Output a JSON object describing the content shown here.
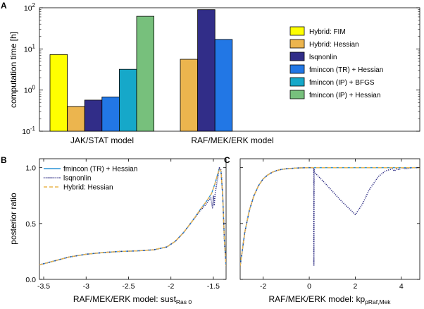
{
  "panels": {
    "a": "A",
    "b": "B",
    "c": "C"
  },
  "chart_data": [
    {
      "type": "bar",
      "panel": "A",
      "ylabel": "computation time [h]",
      "yscale": "log",
      "ylim": [
        0.1,
        100
      ],
      "yticks": [
        {
          "value": 0.1,
          "base": "10",
          "exp": "-1"
        },
        {
          "value": 1,
          "base": "10",
          "exp": "0"
        },
        {
          "value": 10,
          "base": "10",
          "exp": "1"
        },
        {
          "value": 100,
          "base": "10",
          "exp": "2"
        }
      ],
      "categories": [
        "JAK/STAT model",
        "RAF/MEK/ERK model"
      ],
      "legend_position": "right",
      "series": [
        {
          "name": "Hybrid: FIM",
          "color": "#ffff00",
          "values": [
            7.3,
            null
          ]
        },
        {
          "name": "Hybrid: Hessian",
          "color": "#ecb54e",
          "values": [
            0.4,
            5.6
          ]
        },
        {
          "name": "lsqnonlin",
          "color": "#312d88",
          "values": [
            0.57,
            90
          ]
        },
        {
          "name": "fmincon (TR) + Hessian",
          "color": "#2277e5",
          "values": [
            0.68,
            17
          ]
        },
        {
          "name": "fmincon (IP) + BFGS",
          "color": "#16a8c9",
          "values": [
            3.2,
            null
          ]
        },
        {
          "name": "fmincon (IP) + Hessian",
          "color": "#77c07c",
          "values": [
            62,
            null
          ]
        }
      ]
    },
    {
      "type": "line",
      "panel": "B",
      "xlabel_prefix": "RAF/MEK/ERK model: sust",
      "xlabel_sub": "Ras 0",
      "ylabel": "posterior ratio",
      "xlim": [
        -3.55,
        -1.35
      ],
      "ylim": [
        0,
        1.08
      ],
      "xticks": [
        "-3.5",
        "-3",
        "-2.5",
        "-2",
        "-1.5"
      ],
      "yticks": [
        "0.0",
        "0.5",
        "1.0"
      ],
      "legend_position": "top-left",
      "series": [
        {
          "name": "fmincon (TR) + Hessian",
          "color": "#2a93d6",
          "style": "solid",
          "x": [
            -3.55,
            -3.4,
            -3.2,
            -3.0,
            -2.8,
            -2.6,
            -2.4,
            -2.2,
            -2.05,
            -1.95,
            -1.85,
            -1.75,
            -1.65,
            -1.58,
            -1.52,
            -1.48,
            -1.45,
            -1.43,
            -1.41,
            -1.39,
            -1.37,
            -1.35
          ],
          "y": [
            0.13,
            0.16,
            0.2,
            0.225,
            0.24,
            0.25,
            0.255,
            0.265,
            0.29,
            0.34,
            0.42,
            0.52,
            0.63,
            0.7,
            0.77,
            0.86,
            0.94,
            0.99,
            0.97,
            0.75,
            0.35,
            0.12
          ]
        },
        {
          "name": "lsqnonlin",
          "color": "#2b2a82",
          "style": "dotted",
          "x": [
            -3.55,
            -3.4,
            -3.2,
            -3.0,
            -2.8,
            -2.6,
            -2.4,
            -2.2,
            -2.05,
            -1.95,
            -1.85,
            -1.75,
            -1.65,
            -1.6,
            -1.56,
            -1.53,
            -1.51,
            -1.5,
            -1.49,
            -1.48,
            -1.46,
            -1.45,
            -1.43,
            -1.41,
            -1.39,
            -1.37,
            -1.35
          ],
          "y": [
            0.13,
            0.16,
            0.2,
            0.225,
            0.24,
            0.25,
            0.255,
            0.265,
            0.29,
            0.34,
            0.42,
            0.52,
            0.62,
            0.66,
            0.7,
            0.73,
            0.64,
            0.75,
            0.66,
            0.76,
            0.86,
            0.9,
            1.0,
            0.98,
            0.76,
            0.35,
            0.12
          ]
        },
        {
          "name": "Hybrid: Hessian",
          "color": "#ecb54e",
          "style": "dashed",
          "x": [
            -3.55,
            -3.4,
            -3.2,
            -3.0,
            -2.8,
            -2.6,
            -2.4,
            -2.2,
            -2.05,
            -1.95,
            -1.85,
            -1.75,
            -1.65,
            -1.58,
            -1.52,
            -1.48,
            -1.45,
            -1.43,
            -1.41,
            -1.39,
            -1.37,
            -1.35
          ],
          "y": [
            0.13,
            0.16,
            0.2,
            0.225,
            0.24,
            0.25,
            0.255,
            0.265,
            0.29,
            0.34,
            0.42,
            0.52,
            0.63,
            0.7,
            0.77,
            0.86,
            0.94,
            0.99,
            0.97,
            0.75,
            0.35,
            0.12
          ]
        }
      ]
    },
    {
      "type": "line",
      "panel": "C",
      "xlabel_prefix": "RAF/MEK/ERK model: kp",
      "xlabel_sub": "pRaf,Mek",
      "xlim": [
        -3,
        4.8
      ],
      "ylim": [
        0,
        1.08
      ],
      "xticks": [
        "-2",
        "0",
        "2",
        "4"
      ],
      "series": [
        {
          "name": "fmincon (TR) + Hessian",
          "color": "#2a93d6",
          "style": "solid",
          "x": [
            -3,
            -2.8,
            -2.6,
            -2.4,
            -2.2,
            -2.0,
            -1.8,
            -1.6,
            -1.4,
            -1.2,
            -1.0,
            -0.8,
            -0.6,
            -0.4,
            -0.2,
            0,
            0.5,
            1,
            2,
            3,
            4,
            4.8
          ],
          "y": [
            0.12,
            0.42,
            0.62,
            0.75,
            0.84,
            0.9,
            0.935,
            0.96,
            0.975,
            0.985,
            0.99,
            0.993,
            0.996,
            0.998,
            0.999,
            1.0,
            1.0,
            1.0,
            1.0,
            1.0,
            1.0,
            1.0
          ]
        },
        {
          "name": "lsqnonlin",
          "color": "#2b2a82",
          "style": "dotted",
          "x": [
            -3,
            -2.8,
            -2.6,
            -2.4,
            -2.2,
            -2.0,
            -1.8,
            -1.6,
            -1.4,
            -1.2,
            -1.0,
            -0.8,
            -0.6,
            -0.4,
            -0.2,
            0,
            0.15,
            0.2,
            0.2,
            0.21,
            0.22,
            0.6,
            1.0,
            1.4,
            1.8,
            2.0,
            2.3,
            2.6,
            3.0,
            3.3,
            3.6,
            3.7,
            3.8,
            3.9,
            4.0,
            4.2,
            4.5,
            4.8
          ],
          "y": [
            0.12,
            0.42,
            0.62,
            0.75,
            0.84,
            0.9,
            0.935,
            0.96,
            0.975,
            0.985,
            0.99,
            0.993,
            0.996,
            0.998,
            0.999,
            1.0,
            1.0,
            0.99,
            0.12,
            0.99,
            0.96,
            0.88,
            0.79,
            0.7,
            0.62,
            0.58,
            0.67,
            0.8,
            0.92,
            0.97,
            0.99,
            0.97,
            0.99,
            0.98,
            1.0,
            0.99,
            1.0,
            1.0
          ]
        },
        {
          "name": "Hybrid: Hessian",
          "color": "#ecb54e",
          "style": "dashed",
          "x": [
            -3,
            -2.8,
            -2.6,
            -2.4,
            -2.2,
            -2.0,
            -1.8,
            -1.6,
            -1.4,
            -1.2,
            -1.0,
            -0.8,
            -0.6,
            -0.4,
            -0.2,
            0,
            0.5,
            1,
            2,
            3,
            4,
            4.8
          ],
          "y": [
            0.12,
            0.42,
            0.62,
            0.75,
            0.84,
            0.9,
            0.935,
            0.96,
            0.975,
            0.985,
            0.99,
            0.993,
            0.996,
            0.998,
            0.999,
            1.0,
            1.0,
            1.0,
            1.0,
            1.0,
            1.0,
            1.0
          ]
        }
      ]
    }
  ]
}
